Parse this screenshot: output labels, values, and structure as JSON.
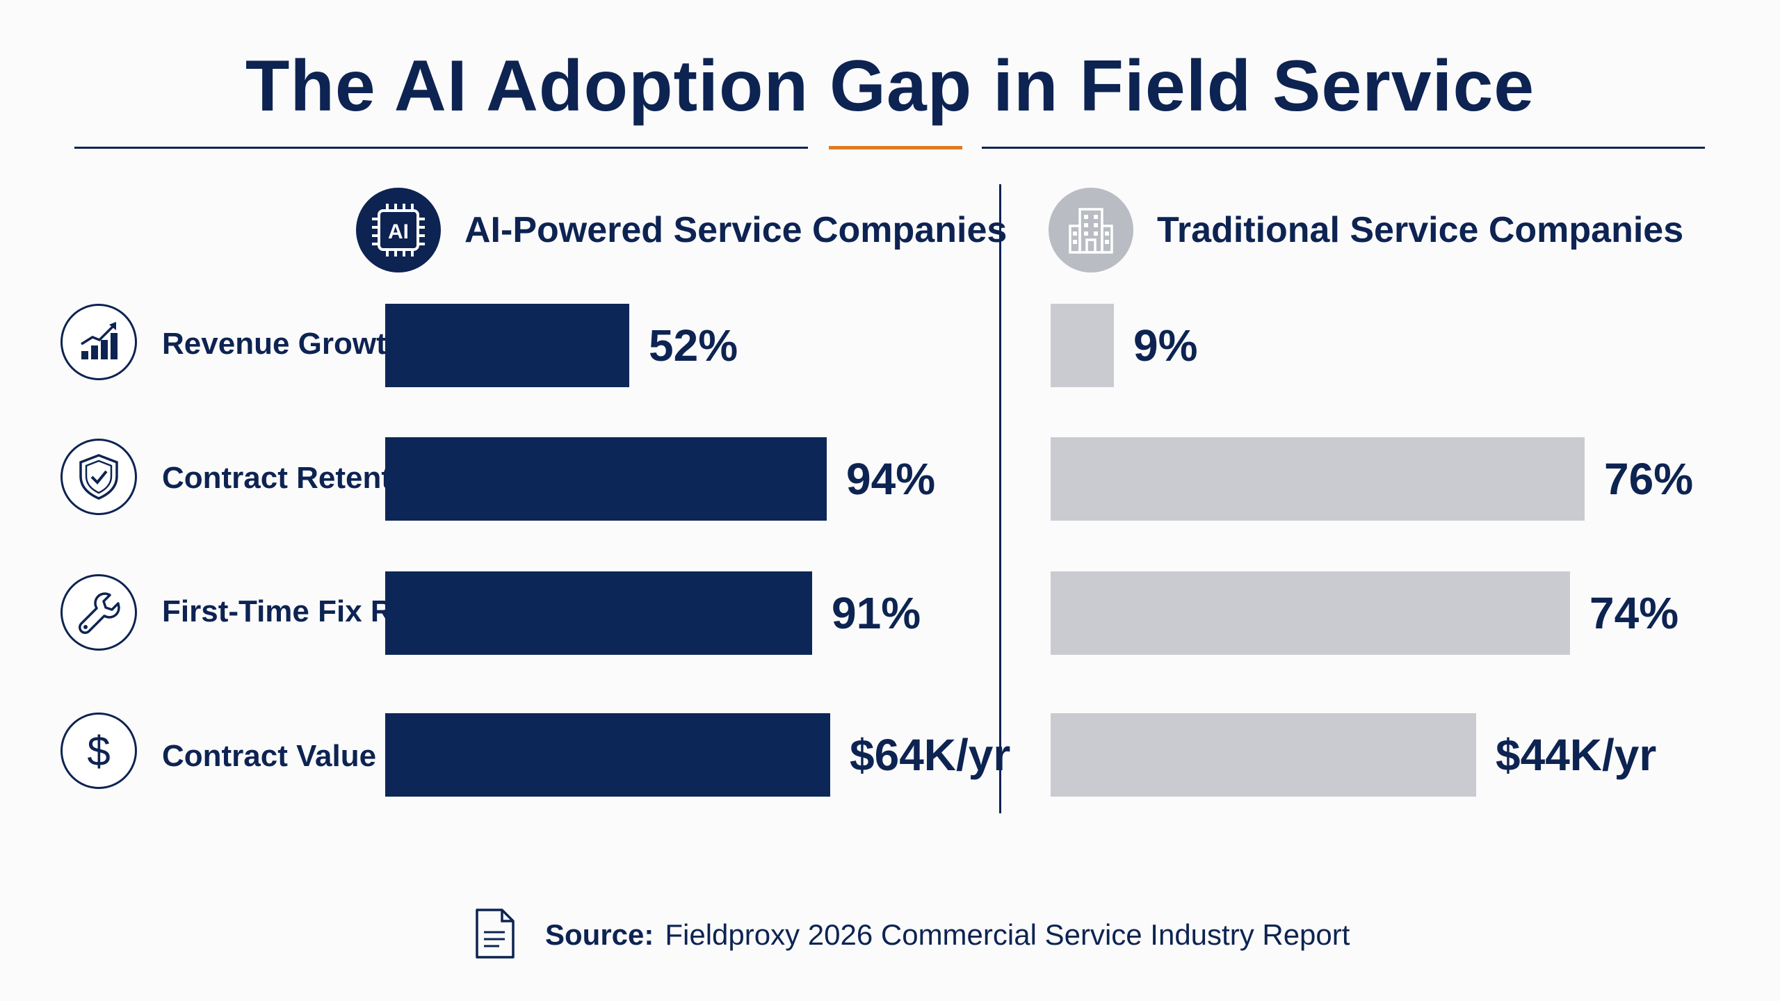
{
  "title": "The AI Adoption Gap in Field Service",
  "colors": {
    "navy": "#0d2352",
    "ai_bar": "#0c2757",
    "traditional_bar": "#c9cbd0",
    "accent": "#e07b22",
    "building_icon_bg": "#b9bcc2"
  },
  "panels": {
    "ai": {
      "title": "AI-Powered Service Companies",
      "icon": "ai-chip-icon",
      "icon_text": "AI"
    },
    "traditional": {
      "title": "Traditional Service Companies",
      "icon": "building-icon"
    }
  },
  "metrics": [
    {
      "label": "Revenue Growth",
      "icon": "chart-growth-icon"
    },
    {
      "label": "Contract Retention",
      "icon": "shield-check-icon"
    },
    {
      "label": "First-Time Fix Rate",
      "icon": "wrench-icon"
    },
    {
      "label": "Contract Value",
      "icon": "dollar-icon"
    }
  ],
  "chart_data": {
    "type": "bar",
    "orientation": "horizontal",
    "categories": [
      "Revenue Growth",
      "Contract Retention",
      "First-Time Fix Rate",
      "Contract Value"
    ],
    "series": [
      {
        "name": "AI-Powered Service Companies",
        "values": [
          52,
          94,
          91,
          64
        ],
        "labels": [
          "52%",
          "94%",
          "91%",
          "$64K/yr"
        ]
      },
      {
        "name": "Traditional Service Companies",
        "values": [
          9,
          76,
          74,
          44
        ],
        "labels": [
          "9%",
          "76%",
          "74%",
          "$44K/yr"
        ]
      }
    ]
  },
  "source": {
    "label": "Source:",
    "text": "Fieldproxy 2026 Commercial Service Industry Report",
    "icon": "document-icon"
  }
}
